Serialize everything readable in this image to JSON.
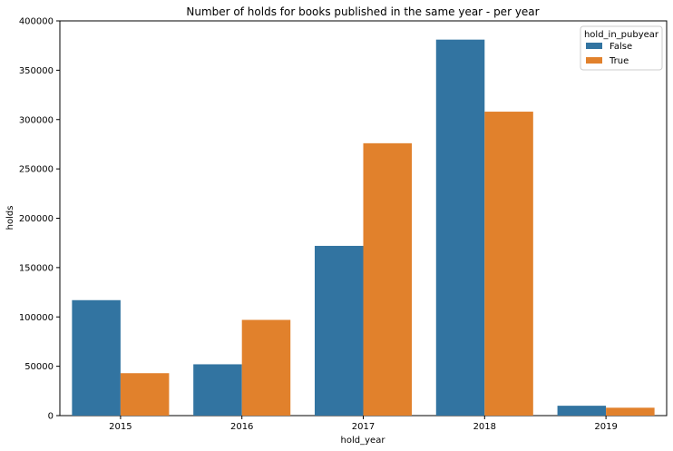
{
  "chart_data": {
    "type": "bar",
    "title": "Number of holds for books published in the same year - per year",
    "xlabel": "hold_year",
    "ylabel": "holds",
    "categories": [
      "2015",
      "2016",
      "2017",
      "2018",
      "2019"
    ],
    "ylim": [
      0,
      400000
    ],
    "yticks": [
      0,
      50000,
      100000,
      150000,
      200000,
      250000,
      300000,
      350000,
      400000
    ],
    "grid": false,
    "legend": {
      "title": "hold_in_pubyear",
      "placement": "top-right"
    },
    "series": [
      {
        "name": "False",
        "color": "#3274a1",
        "values": [
          117000,
          52000,
          172000,
          381000,
          10000
        ]
      },
      {
        "name": "True",
        "color": "#e1812c",
        "values": [
          43000,
          97000,
          276000,
          308000,
          8000
        ]
      }
    ]
  }
}
